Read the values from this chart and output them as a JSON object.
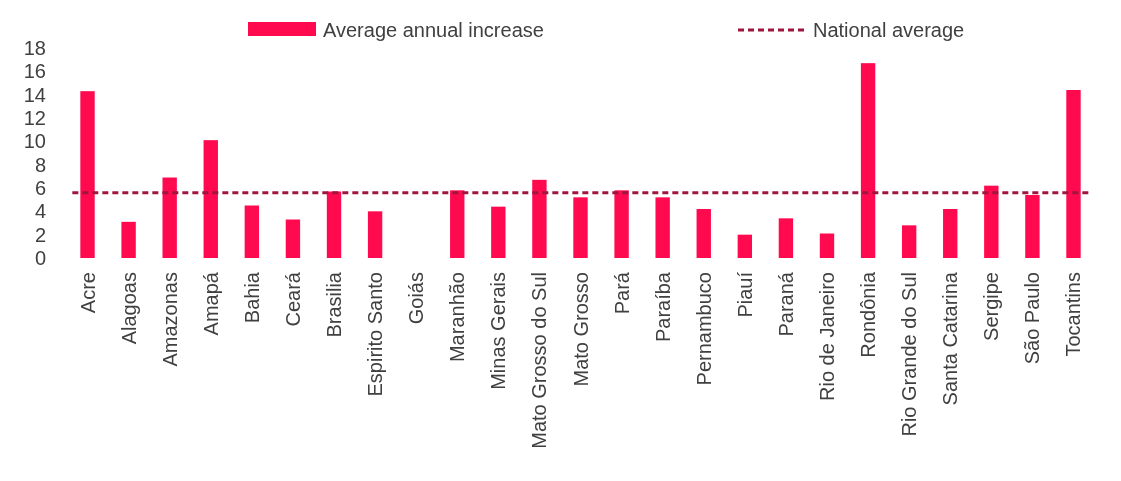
{
  "chart_data": {
    "type": "bar",
    "categories": [
      "Acre",
      "Alagoas",
      "Amazonas",
      "Amapá",
      "Bahia",
      "Ceará",
      "Brasilia",
      "Espirito Santo",
      "Goiás",
      "Maranhão",
      "Minas Gerais",
      "Mato Grosso do Sul",
      "Mato Grosso",
      "Pará",
      "Paraíba",
      "Pernambuco",
      "Piauí",
      "Paraná",
      "Rio de Janeiro",
      "Rondônia",
      "Rio Grande do Sul",
      "Santa Catarina",
      "Sergipe",
      "São Paulo",
      "Tocantins"
    ],
    "series": [
      {
        "name": "Average annual increase",
        "color": "#ff0a4e",
        "values": [
          14.3,
          3.1,
          6.9,
          10.1,
          4.5,
          3.3,
          5.7,
          4.0,
          0,
          5.8,
          4.4,
          6.7,
          5.2,
          5.8,
          5.2,
          4.2,
          2.0,
          3.4,
          2.1,
          16.7,
          2.8,
          4.2,
          6.2,
          5.4,
          14.4
        ]
      }
    ],
    "ylim": [
      0,
      18
    ],
    "yticks": [
      0,
      2,
      4,
      6,
      8,
      10,
      12,
      14,
      16,
      18
    ],
    "grid": false,
    "legend": "top",
    "ref_lines": [
      {
        "axis": "y",
        "value": 5.6,
        "label": "National average",
        "color": "#a0153e",
        "line_style": "dashed"
      }
    ]
  }
}
